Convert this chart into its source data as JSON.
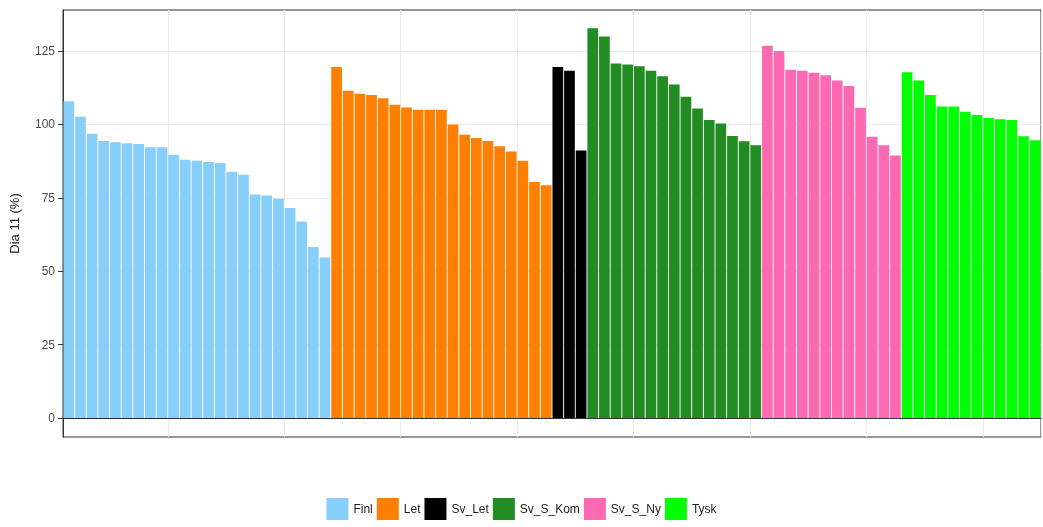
{
  "chart_data": {
    "type": "bar",
    "ylabel": "Dia 11 (%)",
    "stacked": true,
    "categories": [
      null,
      null,
      null,
      null,
      null,
      null,
      null,
      null,
      null,
      null,
      null,
      null,
      null,
      null,
      null,
      null,
      null,
      null,
      null,
      null,
      null,
      null,
      null,
      null,
      null,
      null,
      null,
      null,
      null,
      null,
      null,
      null,
      null,
      null,
      null,
      null,
      null,
      null,
      null,
      null,
      null,
      null,
      null,
      null,
      null,
      null,
      null,
      null,
      null,
      null,
      null,
      null,
      null,
      null,
      null,
      null,
      null,
      null,
      null,
      null,
      null,
      null,
      null,
      null,
      null,
      null,
      null,
      null,
      null,
      null,
      null,
      null,
      null,
      null,
      null,
      null,
      null,
      null,
      null,
      null,
      null,
      null,
      null,
      null
    ],
    "series": [
      {
        "name": "Finl",
        "color": "#87cefa",
        "values": [
          107.9,
          102.6,
          96.8,
          94.4,
          93.9,
          93.6,
          93.3,
          92.2,
          92.2,
          89.7,
          88.0,
          87.6,
          87.2,
          86.9,
          83.9,
          82.9,
          76.1,
          75.8,
          74.7,
          71.5,
          66.9,
          58.2,
          54.7,
          null,
          null,
          null,
          null,
          null,
          null,
          null,
          null,
          null,
          null,
          null,
          null,
          null,
          null,
          null,
          null,
          null,
          null,
          null,
          null,
          null,
          null,
          null,
          null,
          null,
          null,
          null,
          null,
          null,
          null,
          null,
          null,
          null,
          null,
          null,
          null,
          null,
          null,
          null,
          null,
          null,
          null,
          null,
          null,
          null,
          null,
          null,
          null,
          null,
          null,
          null,
          null,
          null,
          null,
          null,
          null,
          null,
          null,
          null,
          null,
          null
        ]
      },
      {
        "name": "Let",
        "color": "#ff7f00",
        "values": [
          null,
          null,
          null,
          null,
          null,
          null,
          null,
          null,
          null,
          null,
          null,
          null,
          null,
          null,
          null,
          null,
          null,
          null,
          null,
          null,
          null,
          null,
          null,
          119.6,
          111.5,
          110.5,
          110.0,
          108.9,
          106.7,
          105.8,
          105.0,
          105.0,
          105.0,
          100.0,
          96.5,
          95.4,
          94.4,
          92.6,
          90.8,
          87.6,
          80.4,
          79.3,
          null,
          null,
          null,
          null,
          null,
          null,
          null,
          null,
          null,
          null,
          null,
          null,
          null,
          null,
          null,
          null,
          null,
          null,
          null,
          null,
          null,
          null,
          null,
          null,
          null,
          null,
          null,
          null,
          null,
          null,
          null,
          null,
          null,
          null,
          null,
          null,
          null,
          null,
          null,
          null,
          null,
          null
        ]
      },
      {
        "name": "Sv_Let",
        "color": "#000000",
        "values": [
          null,
          null,
          null,
          null,
          null,
          null,
          null,
          null,
          null,
          null,
          null,
          null,
          null,
          null,
          null,
          null,
          null,
          null,
          null,
          null,
          null,
          null,
          null,
          null,
          null,
          null,
          null,
          null,
          null,
          null,
          null,
          null,
          null,
          null,
          null,
          null,
          null,
          null,
          null,
          null,
          null,
          null,
          119.6,
          118.3,
          91.1,
          null,
          null,
          null,
          null,
          null,
          null,
          null,
          null,
          null,
          null,
          null,
          null,
          null,
          null,
          null,
          null,
          null,
          null,
          null,
          null,
          null,
          null,
          null,
          null,
          null,
          null,
          null,
          null,
          null,
          null,
          null,
          null,
          null,
          null,
          null,
          null,
          null,
          null,
          null
        ]
      },
      {
        "name": "Sv_S_Kom",
        "color": "#228b22",
        "values": [
          null,
          null,
          null,
          null,
          null,
          null,
          null,
          null,
          null,
          null,
          null,
          null,
          null,
          null,
          null,
          null,
          null,
          null,
          null,
          null,
          null,
          null,
          null,
          null,
          null,
          null,
          null,
          null,
          null,
          null,
          null,
          null,
          null,
          null,
          null,
          null,
          null,
          null,
          null,
          null,
          null,
          null,
          null,
          null,
          null,
          132.8,
          130.0,
          120.8,
          120.4,
          119.8,
          118.3,
          116.4,
          113.6,
          109.4,
          105.4,
          101.5,
          100.3,
          96.1,
          94.3,
          92.9,
          null,
          null,
          null,
          null,
          null,
          null,
          null,
          null,
          null,
          null,
          null,
          null,
          null,
          null,
          null,
          null,
          null,
          null,
          null,
          null,
          null,
          null,
          null,
          null
        ]
      },
      {
        "name": "Sv_S_Ny",
        "color": "#ff69b4",
        "values": [
          null,
          null,
          null,
          null,
          null,
          null,
          null,
          null,
          null,
          null,
          null,
          null,
          null,
          null,
          null,
          null,
          null,
          null,
          null,
          null,
          null,
          null,
          null,
          null,
          null,
          null,
          null,
          null,
          null,
          null,
          null,
          null,
          null,
          null,
          null,
          null,
          null,
          null,
          null,
          null,
          null,
          null,
          null,
          null,
          null,
          null,
          null,
          null,
          null,
          null,
          null,
          null,
          null,
          null,
          null,
          null,
          null,
          null,
          null,
          null,
          126.8,
          125.0,
          118.6,
          118.3,
          117.6,
          116.8,
          115.0,
          113.1,
          105.7,
          95.8,
          92.9,
          89.4,
          null,
          null,
          null,
          null,
          null,
          null,
          null,
          null,
          null,
          null,
          null,
          null
        ]
      },
      {
        "name": "Tysk",
        "color": "#00ff00",
        "values": [
          null,
          null,
          null,
          null,
          null,
          null,
          null,
          null,
          null,
          null,
          null,
          null,
          null,
          null,
          null,
          null,
          null,
          null,
          null,
          null,
          null,
          null,
          null,
          null,
          null,
          null,
          null,
          null,
          null,
          null,
          null,
          null,
          null,
          null,
          null,
          null,
          null,
          null,
          null,
          null,
          null,
          null,
          null,
          null,
          null,
          null,
          null,
          null,
          null,
          null,
          null,
          null,
          null,
          null,
          null,
          null,
          null,
          null,
          null,
          null,
          null,
          null,
          null,
          null,
          null,
          null,
          null,
          null,
          null,
          null,
          null,
          null,
          117.8,
          115.0,
          110.0,
          106.1,
          106.1,
          104.3,
          103.2,
          102.2,
          101.8,
          101.5,
          96.0,
          94.6
        ]
      }
    ],
    "ylim": [
      -6.5,
      139
    ],
    "yticks": [
      0,
      25,
      50,
      75,
      100,
      125
    ],
    "grid": true,
    "legend": "bottom"
  }
}
